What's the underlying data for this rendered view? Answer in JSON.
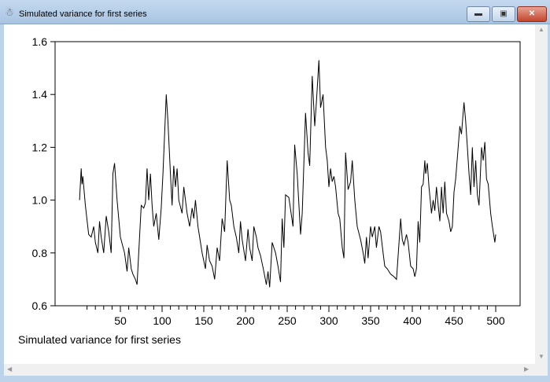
{
  "window": {
    "title": "Simulated variance for first series",
    "icon": "gretl-icon",
    "buttons": [
      "minimize",
      "maximize",
      "close"
    ]
  },
  "chart_data": {
    "type": "line",
    "title": "",
    "xlabel": "Simulated variance for first series",
    "ylabel": "",
    "xlim": [
      0,
      525
    ],
    "ylim": [
      0.6,
      1.6
    ],
    "yticks": [
      "0.6",
      "0.8",
      "1.0",
      "1.2",
      "1.4",
      "1.6"
    ],
    "xticks": [
      "50",
      "100",
      "150",
      "200",
      "250",
      "300",
      "350",
      "400",
      "450",
      "500"
    ],
    "grid": false,
    "line_color": "#000000",
    "x": [
      1,
      3,
      4,
      5,
      8,
      12,
      15,
      18,
      20,
      23,
      25,
      27,
      30,
      33,
      36,
      39,
      41,
      43,
      46,
      50,
      55,
      58,
      60,
      63,
      65,
      68,
      70,
      72,
      75,
      78,
      80,
      82,
      84,
      86,
      88,
      90,
      93,
      96,
      99,
      101,
      103,
      105,
      107,
      110,
      112,
      114,
      116,
      118,
      120,
      124,
      126,
      130,
      133,
      136,
      138,
      140,
      143,
      148,
      152,
      154,
      157,
      160,
      163,
      166,
      169,
      172,
      175,
      178,
      181,
      183,
      186,
      189,
      192,
      194,
      196,
      200,
      203,
      205,
      208,
      210,
      213,
      215,
      218,
      222,
      225,
      227,
      229,
      232,
      236,
      239,
      242,
      244,
      246,
      248,
      252,
      257,
      259,
      262,
      266,
      268,
      272,
      275,
      277,
      280,
      283,
      285,
      288,
      290,
      293,
      296,
      298,
      300,
      302,
      304,
      306,
      308,
      311,
      313,
      316,
      318,
      320,
      323,
      326,
      328,
      331,
      334,
      338,
      341,
      343,
      345,
      347,
      350,
      352,
      355,
      357,
      360,
      362,
      365,
      367,
      370,
      374,
      378,
      381,
      383,
      386,
      388,
      390,
      393,
      395,
      398,
      401,
      403,
      405,
      407,
      409,
      411,
      413,
      415,
      416,
      418,
      420,
      423,
      425,
      427,
      429,
      431,
      433,
      435,
      437,
      439,
      441,
      444,
      446,
      448,
      450,
      452,
      455,
      457,
      459,
      462,
      464,
      466,
      468,
      470,
      472,
      474,
      476,
      478,
      480,
      483,
      485,
      487,
      489,
      491,
      494,
      496,
      499,
      500
    ],
    "y": [
      1.0,
      1.12,
      1.06,
      1.09,
      0.98,
      0.87,
      0.86,
      0.9,
      0.84,
      0.8,
      0.92,
      0.86,
      0.8,
      0.94,
      0.88,
      0.8,
      1.1,
      1.14,
      1.0,
      0.86,
      0.8,
      0.73,
      0.82,
      0.74,
      0.72,
      0.7,
      0.68,
      0.8,
      0.98,
      0.97,
      0.99,
      1.12,
      1.0,
      1.1,
      0.98,
      0.9,
      0.95,
      0.85,
      0.97,
      1.1,
      1.25,
      1.4,
      1.3,
      1.1,
      0.98,
      1.13,
      1.05,
      1.12,
      1.0,
      0.95,
      1.05,
      0.95,
      0.9,
      0.97,
      0.93,
      1.0,
      0.9,
      0.8,
      0.74,
      0.83,
      0.77,
      0.75,
      0.7,
      0.82,
      0.77,
      0.93,
      0.88,
      1.15,
      1.0,
      0.98,
      0.9,
      0.86,
      0.8,
      0.92,
      0.85,
      0.77,
      0.89,
      0.82,
      0.77,
      0.9,
      0.86,
      0.82,
      0.79,
      0.73,
      0.68,
      0.73,
      0.67,
      0.84,
      0.8,
      0.75,
      0.69,
      0.93,
      0.82,
      1.02,
      1.01,
      0.9,
      1.21,
      1.1,
      0.87,
      0.95,
      1.33,
      1.18,
      1.13,
      1.47,
      1.28,
      1.37,
      1.53,
      1.35,
      1.4,
      1.2,
      1.15,
      1.05,
      1.12,
      1.07,
      1.09,
      1.05,
      0.95,
      0.93,
      0.82,
      0.78,
      1.18,
      1.04,
      1.07,
      1.15,
      1.0,
      0.9,
      0.85,
      0.8,
      0.76,
      0.86,
      0.78,
      0.9,
      0.86,
      0.9,
      0.82,
      0.9,
      0.88,
      0.8,
      0.75,
      0.74,
      0.72,
      0.71,
      0.7,
      0.79,
      0.93,
      0.85,
      0.83,
      0.87,
      0.84,
      0.75,
      0.74,
      0.71,
      0.74,
      0.92,
      0.84,
      1.05,
      1.06,
      1.15,
      1.1,
      1.14,
      1.05,
      0.95,
      1.0,
      0.96,
      1.05,
      0.98,
      0.92,
      1.05,
      0.95,
      1.07,
      0.95,
      0.92,
      0.88,
      0.9,
      1.03,
      1.08,
      1.2,
      1.28,
      1.25,
      1.37,
      1.3,
      1.2,
      1.1,
      1.02,
      1.2,
      1.05,
      1.15,
      1.02,
      0.98,
      1.2,
      1.15,
      1.22,
      1.08,
      1.06,
      0.95,
      0.9,
      0.84,
      0.87
    ]
  }
}
